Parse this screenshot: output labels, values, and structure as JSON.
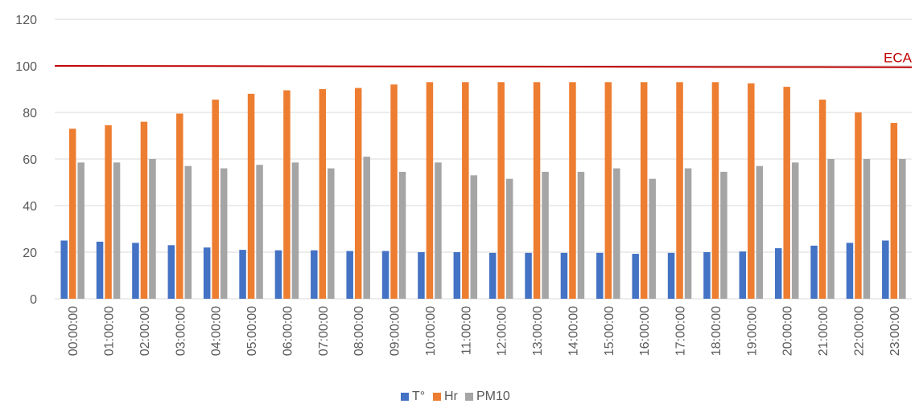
{
  "chart_data": {
    "type": "bar",
    "title": "",
    "xlabel": "",
    "ylabel": "",
    "ylim": [
      0,
      120
    ],
    "yticks": [
      0,
      20,
      40,
      60,
      80,
      100,
      120
    ],
    "grid": true,
    "legend_position": "bottom",
    "categories": [
      "00:00:00",
      "01:00:00",
      "02:00:00",
      "03:00:00",
      "04:00:00",
      "05:00:00",
      "06:00:00",
      "07:00:00",
      "08:00:00",
      "09:00:00",
      "10:00:00",
      "11:00:00",
      "12:00:00",
      "13:00:00",
      "14:00:00",
      "15:00:00",
      "16:00:00",
      "17:00:00",
      "18:00:00",
      "19:00:00",
      "20:00:00",
      "21:00:00",
      "22:00:00",
      "23:00:00"
    ],
    "series": [
      {
        "name": "T°",
        "color": "#4472c4",
        "values": [
          25,
          24.5,
          24,
          23,
          22,
          21,
          20.8,
          20.8,
          20.5,
          20.5,
          20,
          20,
          19.7,
          19.7,
          19.7,
          19.7,
          19.3,
          19.7,
          20,
          20.3,
          21.7,
          22.8,
          24,
          25
        ]
      },
      {
        "name": "Hr",
        "color": "#ed7d31",
        "values": [
          73,
          74.5,
          76,
          79.5,
          85.5,
          88,
          89.5,
          90,
          90.5,
          92,
          93,
          93,
          93,
          93,
          93,
          93,
          93,
          93,
          93,
          92.5,
          91,
          85.5,
          80,
          75.5
        ]
      },
      {
        "name": "PM10",
        "color": "#a5a5a5",
        "values": [
          58.5,
          58.5,
          60,
          57,
          56,
          57.5,
          58.5,
          56,
          61,
          54.5,
          58.5,
          53,
          51.5,
          54.5,
          54.5,
          56,
          51.5,
          56,
          54.5,
          57,
          58.5,
          60,
          60,
          60
        ]
      }
    ],
    "reference_lines": [
      {
        "label": "ECA",
        "y_start": 100,
        "y_end": 99.4,
        "color": "#c00000"
      }
    ],
    "axis_color": "#595959",
    "grid_color": "#d9d9d9"
  }
}
